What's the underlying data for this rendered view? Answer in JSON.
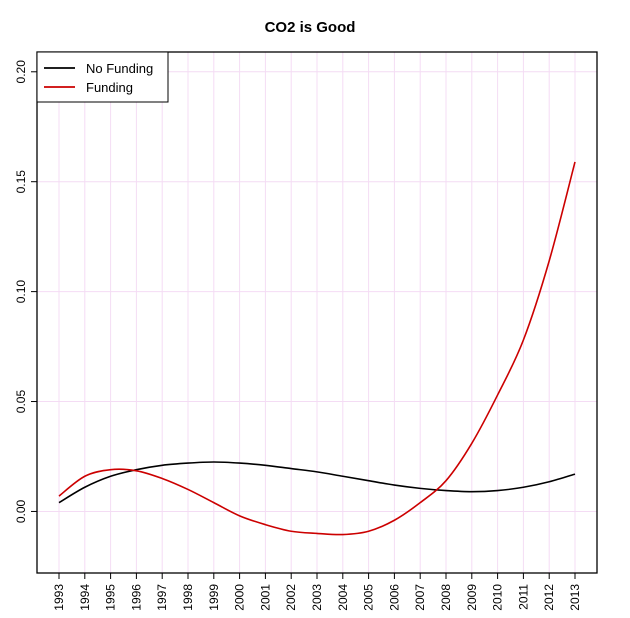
{
  "chart_data": {
    "type": "line",
    "title": "CO2 is Good",
    "xlabel": "",
    "ylabel": "",
    "x": [
      1993,
      1994,
      1995,
      1996,
      1997,
      1998,
      1999,
      2000,
      2001,
      2002,
      2003,
      2004,
      2005,
      2006,
      2007,
      2008,
      2009,
      2010,
      2011,
      2012,
      2013
    ],
    "x_tick_labels": [
      "1993",
      "1994",
      "1995",
      "1996",
      "1997",
      "1998",
      "1999",
      "2000",
      "2001",
      "2002",
      "2003",
      "2004",
      "2005",
      "2006",
      "2007",
      "2008",
      "2009",
      "2010",
      "2011",
      "2012",
      "2013"
    ],
    "y_ticks": [
      0.0,
      0.05,
      0.1,
      0.15,
      0.2
    ],
    "y_tick_labels": [
      "0.00",
      "0.05",
      "0.10",
      "0.15",
      "0.20"
    ],
    "xlim": [
      1993,
      2013
    ],
    "ylim": [
      -0.028,
      0.209
    ],
    "grid": true,
    "legend_position": "top-left",
    "series": [
      {
        "name": "No Funding",
        "color": "#000000",
        "values": [
          0.004,
          0.011,
          0.016,
          0.019,
          0.021,
          0.022,
          0.0225,
          0.022,
          0.021,
          0.0195,
          0.018,
          0.016,
          0.014,
          0.012,
          0.0105,
          0.0095,
          0.009,
          0.0095,
          0.011,
          0.0135,
          0.017
        ]
      },
      {
        "name": "Funding",
        "color": "#cc0000",
        "values": [
          0.007,
          0.016,
          0.019,
          0.0185,
          0.015,
          0.01,
          0.004,
          -0.002,
          -0.006,
          -0.009,
          -0.01,
          -0.0105,
          -0.009,
          -0.004,
          0.004,
          0.014,
          0.031,
          0.053,
          0.078,
          0.114,
          0.159
        ]
      }
    ]
  }
}
